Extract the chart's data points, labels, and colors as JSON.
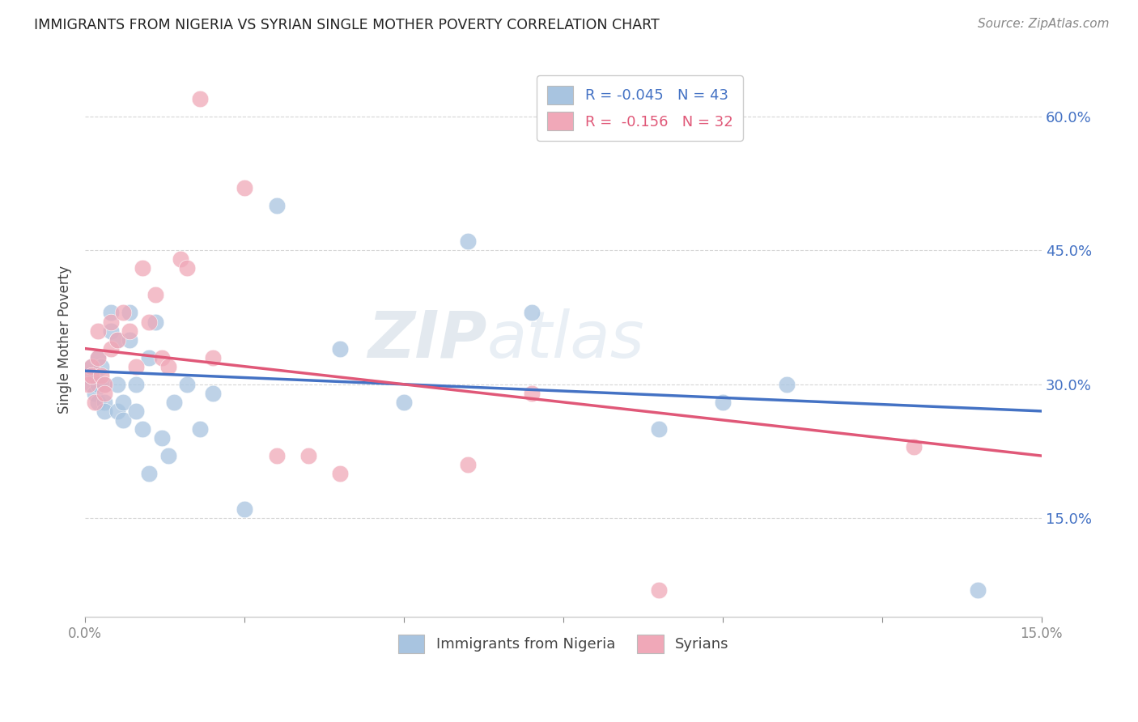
{
  "title": "IMMIGRANTS FROM NIGERIA VS SYRIAN SINGLE MOTHER POVERTY CORRELATION CHART",
  "source": "Source: ZipAtlas.com",
  "ylabel": "Single Mother Poverty",
  "ylabel_ticks": [
    "60.0%",
    "45.0%",
    "30.0%",
    "15.0%"
  ],
  "ylabel_tick_vals": [
    0.6,
    0.45,
    0.3,
    0.15
  ],
  "xlim": [
    0.0,
    0.15
  ],
  "ylim": [
    0.04,
    0.66
  ],
  "legend_label1": "R = -0.045   N = 43",
  "legend_label2": "R =  -0.156   N = 32",
  "legend_color1": "#a8c4e0",
  "legend_color2": "#f0a8b8",
  "dot_color1": "#a8c4e0",
  "dot_color2": "#f0a8b8",
  "line_color1": "#4472c4",
  "line_color2": "#e05878",
  "legend_text_color": "#4472c4",
  "legend_text_color2": "#e05878",
  "nigeria_x": [
    0.0005,
    0.001,
    0.001,
    0.0015,
    0.0015,
    0.002,
    0.002,
    0.002,
    0.0025,
    0.003,
    0.003,
    0.003,
    0.004,
    0.004,
    0.005,
    0.005,
    0.005,
    0.006,
    0.006,
    0.007,
    0.007,
    0.008,
    0.008,
    0.009,
    0.01,
    0.01,
    0.011,
    0.012,
    0.013,
    0.014,
    0.016,
    0.018,
    0.02,
    0.025,
    0.03,
    0.04,
    0.05,
    0.06,
    0.07,
    0.09,
    0.1,
    0.11,
    0.14
  ],
  "nigeria_y": [
    0.31,
    0.32,
    0.3,
    0.31,
    0.29,
    0.33,
    0.3,
    0.28,
    0.32,
    0.3,
    0.28,
    0.27,
    0.36,
    0.38,
    0.35,
    0.27,
    0.3,
    0.26,
    0.28,
    0.38,
    0.35,
    0.27,
    0.3,
    0.25,
    0.2,
    0.33,
    0.37,
    0.24,
    0.22,
    0.28,
    0.3,
    0.25,
    0.29,
    0.16,
    0.5,
    0.34,
    0.28,
    0.46,
    0.38,
    0.25,
    0.28,
    0.3,
    0.07
  ],
  "syrian_x": [
    0.0005,
    0.001,
    0.001,
    0.0015,
    0.002,
    0.002,
    0.0025,
    0.003,
    0.003,
    0.004,
    0.004,
    0.005,
    0.006,
    0.007,
    0.008,
    0.009,
    0.01,
    0.011,
    0.012,
    0.013,
    0.015,
    0.016,
    0.018,
    0.02,
    0.025,
    0.03,
    0.035,
    0.04,
    0.06,
    0.07,
    0.09,
    0.13
  ],
  "syrian_y": [
    0.3,
    0.32,
    0.31,
    0.28,
    0.33,
    0.36,
    0.31,
    0.3,
    0.29,
    0.37,
    0.34,
    0.35,
    0.38,
    0.36,
    0.32,
    0.43,
    0.37,
    0.4,
    0.33,
    0.32,
    0.44,
    0.43,
    0.62,
    0.33,
    0.52,
    0.22,
    0.22,
    0.2,
    0.21,
    0.29,
    0.07,
    0.23
  ]
}
